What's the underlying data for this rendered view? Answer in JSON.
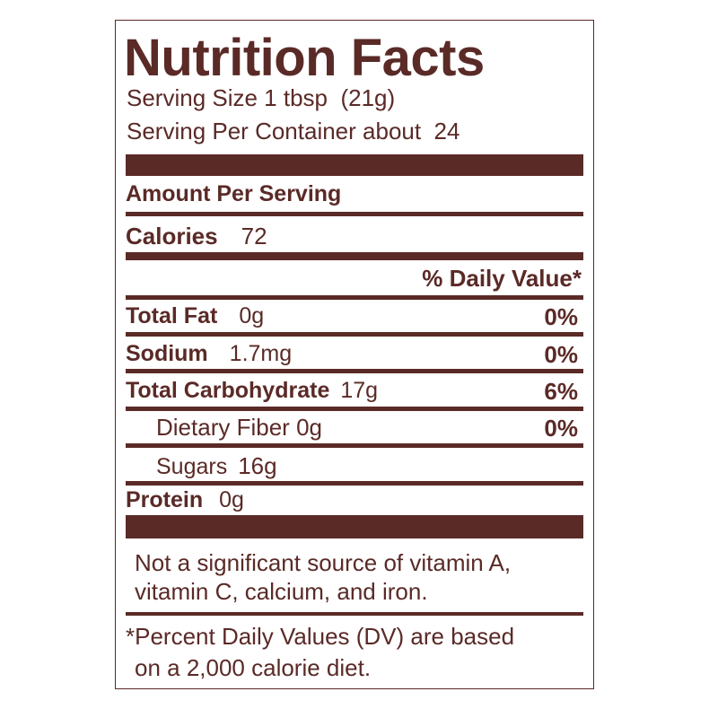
{
  "title": "Nutrition Facts",
  "serving": [
    "Serving Size 1 tbsp  (21g)",
    "Serving Per Container about  24"
  ],
  "amount_per_serving": "Amount Per Serving",
  "calories": {
    "label": "Calories",
    "amount": "72"
  },
  "daily_value_header": "% Daily Value*",
  "nutrients": [
    {
      "label": "Total Fat",
      "amount": "0g",
      "dv": "0%"
    },
    {
      "label": "Sodium",
      "amount": "1.7mg",
      "dv": "0%"
    },
    {
      "label": "Total Carbohydrate",
      "amount": "17g",
      "dv": "6%"
    },
    {
      "label": "Dietary Fiber",
      "amount": "0g",
      "dv": "0%"
    },
    {
      "label": "Sugars",
      "amount": "16g"
    },
    {
      "label": "Protein",
      "amount": "0g"
    }
  ],
  "vitamin_note": [
    "Not a significant source of vitamin A,",
    "vitamin C, calcium, and iron."
  ],
  "footnote": [
    "*Percent Daily Values (DV) are based",
    "on a 2,000 calorie diet."
  ]
}
